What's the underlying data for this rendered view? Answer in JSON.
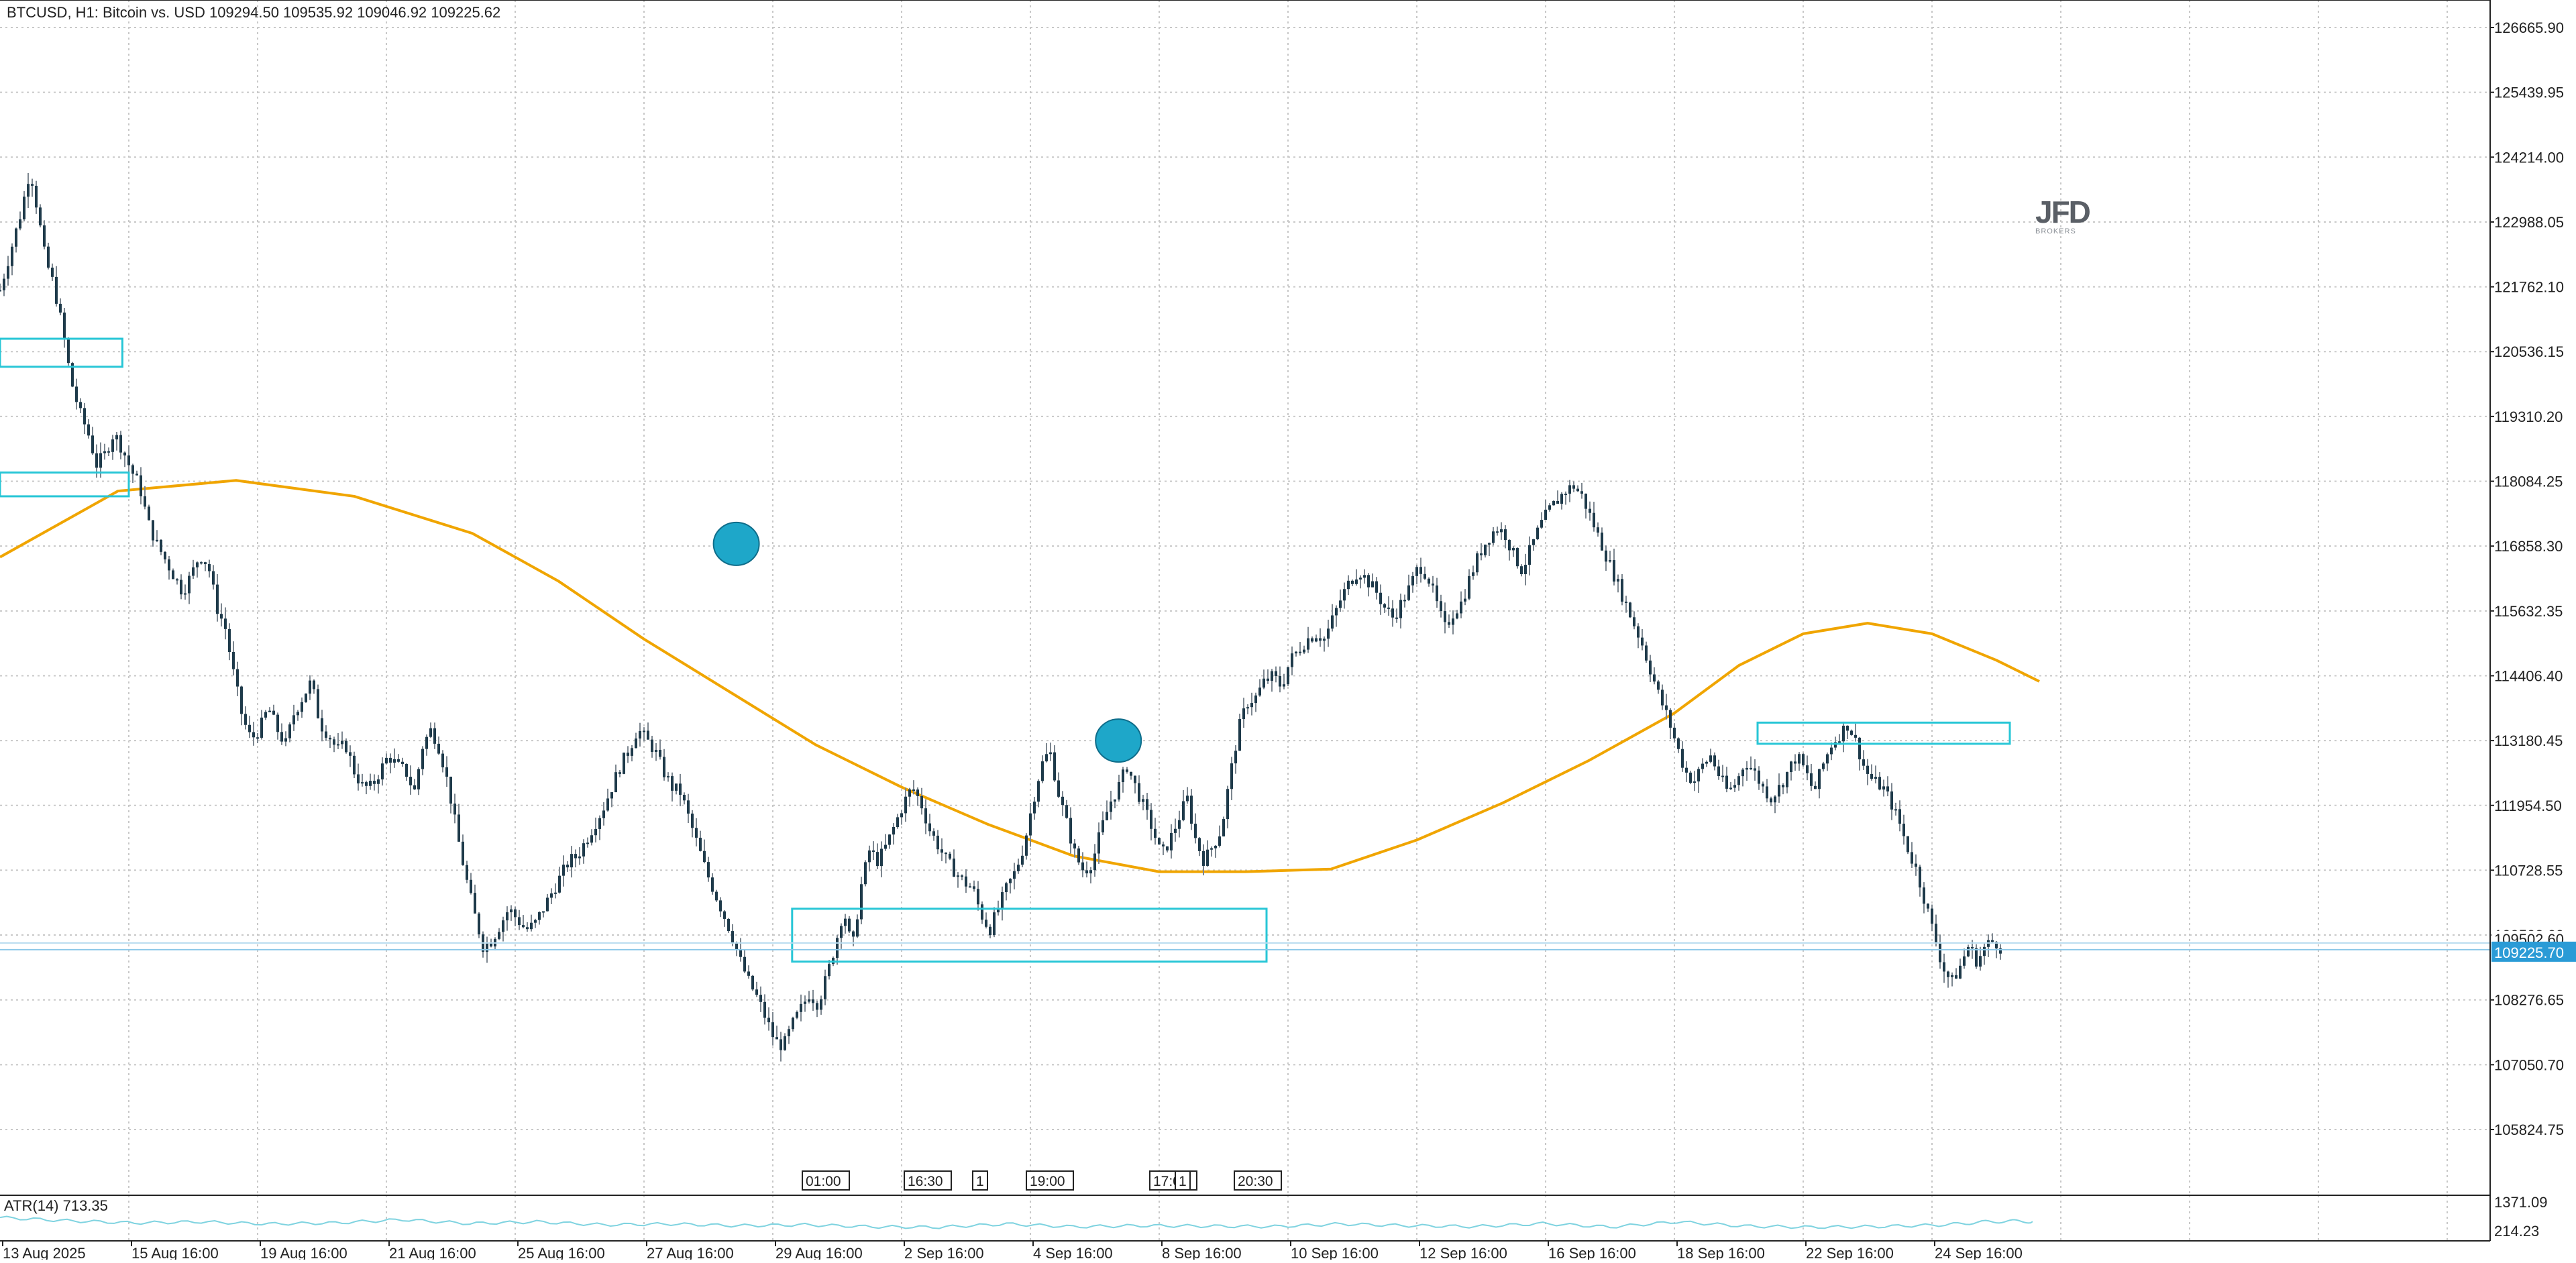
{
  "header": {
    "symbol_info": "BTCUSD, H1:  Bitcoin vs. USD  109294.50 109535.92 109046.92 109225.62"
  },
  "watermark": {
    "logo_text": "JFD",
    "sub_text": "BROKERS"
  },
  "indicator": {
    "label": "ATR(14) 713.35",
    "axis_ticks": [
      "1371.09",
      "214.23"
    ]
  },
  "colors": {
    "up_candle": "#1e3a4a",
    "down_candle": "#1e3a4a",
    "wick": "#7d8790",
    "moving_average": "#f0a500",
    "zone_outline": "#27c6d6",
    "marker_fill": "#1ea7c9",
    "atr_line": "#7fd3e0",
    "grid": "#c8c8c8",
    "price_badge": "#2a9bd6"
  },
  "time_markers": [
    "01:00",
    "16:30",
    "1",
    "19:00",
    "",
    "17:05",
    "1",
    "20:30"
  ],
  "chart_data": {
    "type": "candlestick",
    "symbol": "BTCUSD",
    "timeframe": "H1",
    "y_ticks": [
      126665.9,
      125439.95,
      124214.0,
      122988.05,
      121762.1,
      120536.15,
      119310.2,
      118084.25,
      116858.3,
      115632.35,
      114406.4,
      113180.45,
      111954.5,
      110728.55,
      109502.6,
      108276.65,
      107050.7,
      105824.75
    ],
    "y_tick_labels": [
      "126665.90",
      "125439.95",
      "124214.00",
      "122988.05",
      "121762.10",
      "120536.15",
      "119310.20",
      "118084.25",
      "116858.30",
      "115632.35",
      "114406.40",
      "113180.45",
      "111954.50",
      "110728.55",
      "109502.60",
      "108276.65",
      "107050.70",
      "105824.75"
    ],
    "ylim": [
      104900,
      127050
    ],
    "x_tick_labels": [
      "13 Aug 2025",
      "15 Aug 16:00",
      "19 Aug 16:00",
      "21 Aug 16:00",
      "25 Aug 16:00",
      "27 Aug 16:00",
      "29 Aug 16:00",
      "2 Sep 16:00",
      "4 Sep 16:00",
      "8 Sep 16:00",
      "10 Sep 16:00",
      "12 Sep 16:00",
      "16 Sep 16:00",
      "18 Sep 16:00",
      "22 Sep 16:00",
      "24 Sep 16:00"
    ],
    "close_path": [
      [
        0,
        121700
      ],
      [
        12,
        122600
      ],
      [
        20,
        123200
      ],
      [
        28,
        124000
      ],
      [
        35,
        123200
      ],
      [
        42,
        122300
      ],
      [
        50,
        121800
      ],
      [
        58,
        121000
      ],
      [
        66,
        120000
      ],
      [
        74,
        119400
      ],
      [
        82,
        119000
      ],
      [
        90,
        118400
      ],
      [
        98,
        118600
      ],
      [
        106,
        119000
      ],
      [
        114,
        118700
      ],
      [
        122,
        118300
      ],
      [
        130,
        118000
      ],
      [
        138,
        117300
      ],
      [
        146,
        116900
      ],
      [
        154,
        116600
      ],
      [
        162,
        116300
      ],
      [
        170,
        116000
      ],
      [
        178,
        116300
      ],
      [
        186,
        116700
      ],
      [
        194,
        116500
      ],
      [
        202,
        115700
      ],
      [
        210,
        115300
      ],
      [
        218,
        114400
      ],
      [
        226,
        113600
      ],
      [
        234,
        113200
      ],
      [
        242,
        113400
      ],
      [
        250,
        113800
      ],
      [
        258,
        113400
      ],
      [
        266,
        113100
      ],
      [
        274,
        113700
      ],
      [
        282,
        114000
      ],
      [
        290,
        114300
      ],
      [
        298,
        113500
      ],
      [
        306,
        113300
      ],
      [
        314,
        113000
      ],
      [
        322,
        113100
      ],
      [
        330,
        112600
      ],
      [
        338,
        112300
      ],
      [
        346,
        112300
      ],
      [
        354,
        112600
      ],
      [
        362,
        112900
      ],
      [
        370,
        112700
      ],
      [
        378,
        112600
      ],
      [
        386,
        112200
      ],
      [
        394,
        113100
      ],
      [
        402,
        113400
      ],
      [
        410,
        113000
      ],
      [
        418,
        112300
      ],
      [
        426,
        111400
      ],
      [
        434,
        110600
      ],
      [
        442,
        109900
      ],
      [
        450,
        109300
      ],
      [
        458,
        109400
      ],
      [
        466,
        109700
      ],
      [
        474,
        110000
      ],
      [
        482,
        109800
      ],
      [
        490,
        109600
      ],
      [
        498,
        109700
      ],
      [
        506,
        110000
      ],
      [
        514,
        110300
      ],
      [
        522,
        110600
      ],
      [
        530,
        110900
      ],
      [
        538,
        111000
      ],
      [
        546,
        111300
      ],
      [
        554,
        111600
      ],
      [
        562,
        111900
      ],
      [
        570,
        112300
      ],
      [
        578,
        112700
      ],
      [
        586,
        113000
      ],
      [
        594,
        113400
      ],
      [
        602,
        113200
      ],
      [
        610,
        113000
      ],
      [
        618,
        112600
      ],
      [
        626,
        112300
      ],
      [
        634,
        112200
      ],
      [
        642,
        111700
      ],
      [
        650,
        111200
      ],
      [
        658,
        110700
      ],
      [
        666,
        110300
      ],
      [
        674,
        109900
      ],
      [
        682,
        109500
      ],
      [
        690,
        109000
      ],
      [
        698,
        108600
      ],
      [
        706,
        108300
      ],
      [
        714,
        107900
      ],
      [
        722,
        107500
      ],
      [
        730,
        107400
      ],
      [
        738,
        107800
      ],
      [
        746,
        108100
      ],
      [
        754,
        108400
      ],
      [
        762,
        108200
      ],
      [
        770,
        108700
      ],
      [
        778,
        109300
      ],
      [
        786,
        110000
      ],
      [
        794,
        109200
      ],
      [
        802,
        110400
      ],
      [
        810,
        111100
      ],
      [
        818,
        110900
      ],
      [
        826,
        111200
      ],
      [
        834,
        111600
      ],
      [
        842,
        112000
      ],
      [
        850,
        112300
      ],
      [
        858,
        112000
      ],
      [
        866,
        111500
      ],
      [
        874,
        111200
      ],
      [
        882,
        110900
      ],
      [
        890,
        110700
      ],
      [
        898,
        110500
      ],
      [
        906,
        110400
      ],
      [
        914,
        109900
      ],
      [
        922,
        109600
      ],
      [
        930,
        110000
      ],
      [
        938,
        110400
      ],
      [
        946,
        110700
      ],
      [
        954,
        111200
      ],
      [
        962,
        112000
      ],
      [
        970,
        112700
      ],
      [
        978,
        113000
      ],
      [
        986,
        112200
      ],
      [
        994,
        111600
      ],
      [
        1002,
        111000
      ],
      [
        1010,
        110700
      ],
      [
        1018,
        110900
      ],
      [
        1026,
        111500
      ],
      [
        1034,
        112000
      ],
      [
        1042,
        112300
      ],
      [
        1050,
        112700
      ],
      [
        1058,
        112300
      ],
      [
        1066,
        111900
      ],
      [
        1074,
        111500
      ],
      [
        1082,
        111000
      ],
      [
        1090,
        111300
      ],
      [
        1098,
        111700
      ],
      [
        1106,
        112100
      ],
      [
        1114,
        111300
      ],
      [
        1122,
        110900
      ],
      [
        1130,
        111200
      ],
      [
        1138,
        111500
      ],
      [
        1146,
        112500
      ],
      [
        1154,
        113400
      ],
      [
        1162,
        113900
      ],
      [
        1170,
        114000
      ],
      [
        1178,
        114300
      ],
      [
        1186,
        114400
      ],
      [
        1194,
        114200
      ],
      [
        1202,
        114700
      ],
      [
        1210,
        114900
      ],
      [
        1218,
        115100
      ],
      [
        1226,
        115200
      ],
      [
        1234,
        115100
      ],
      [
        1242,
        115500
      ],
      [
        1250,
        115900
      ],
      [
        1258,
        116200
      ],
      [
        1266,
        116400
      ],
      [
        1274,
        116200
      ],
      [
        1282,
        116000
      ],
      [
        1290,
        115700
      ],
      [
        1298,
        115500
      ],
      [
        1306,
        115800
      ],
      [
        1314,
        116100
      ],
      [
        1322,
        116500
      ],
      [
        1330,
        116300
      ],
      [
        1338,
        115800
      ],
      [
        1346,
        115300
      ],
      [
        1354,
        115600
      ],
      [
        1362,
        115800
      ],
      [
        1370,
        116300
      ],
      [
        1378,
        116700
      ],
      [
        1386,
        117000
      ],
      [
        1394,
        117200
      ],
      [
        1402,
        117100
      ],
      [
        1410,
        116700
      ],
      [
        1418,
        116400
      ],
      [
        1426,
        116800
      ],
      [
        1434,
        117200
      ],
      [
        1442,
        117500
      ],
      [
        1450,
        117700
      ],
      [
        1458,
        117900
      ],
      [
        1466,
        118000
      ],
      [
        1474,
        117800
      ],
      [
        1482,
        117400
      ],
      [
        1490,
        117000
      ],
      [
        1498,
        116600
      ],
      [
        1506,
        116200
      ],
      [
        1514,
        115800
      ],
      [
        1522,
        115400
      ],
      [
        1530,
        115000
      ],
      [
        1538,
        114500
      ],
      [
        1546,
        114000
      ],
      [
        1554,
        113600
      ],
      [
        1562,
        113100
      ],
      [
        1570,
        112600
      ],
      [
        1578,
        112400
      ],
      [
        1586,
        112700
      ],
      [
        1594,
        112900
      ],
      [
        1602,
        112500
      ],
      [
        1610,
        112200
      ],
      [
        1618,
        112400
      ],
      [
        1626,
        112800
      ],
      [
        1634,
        112600
      ],
      [
        1642,
        112300
      ],
      [
        1650,
        112100
      ],
      [
        1658,
        112300
      ],
      [
        1666,
        112600
      ],
      [
        1674,
        112900
      ],
      [
        1682,
        112600
      ],
      [
        1690,
        112200
      ],
      [
        1698,
        112700
      ],
      [
        1706,
        113100
      ],
      [
        1714,
        113300
      ],
      [
        1722,
        113500
      ],
      [
        1730,
        113100
      ],
      [
        1738,
        112600
      ],
      [
        1746,
        112400
      ],
      [
        1754,
        112300
      ],
      [
        1762,
        112000
      ],
      [
        1770,
        111600
      ],
      [
        1778,
        111100
      ],
      [
        1786,
        110700
      ],
      [
        1794,
        110100
      ],
      [
        1802,
        109500
      ],
      [
        1810,
        108900
      ],
      [
        1818,
        108600
      ],
      [
        1826,
        108900
      ],
      [
        1834,
        109300
      ],
      [
        1842,
        109000
      ],
      [
        1850,
        109300
      ],
      [
        1858,
        109400
      ],
      [
        1866,
        109225
      ]
    ],
    "moving_average": [
      [
        0,
        116650
      ],
      [
        110,
        117900
      ],
      [
        220,
        118100
      ],
      [
        330,
        117800
      ],
      [
        440,
        117100
      ],
      [
        520,
        116200
      ],
      [
        600,
        115100
      ],
      [
        680,
        114100
      ],
      [
        760,
        113100
      ],
      [
        840,
        112300
      ],
      [
        920,
        111600
      ],
      [
        1000,
        111000
      ],
      [
        1080,
        110700
      ],
      [
        1160,
        110700
      ],
      [
        1240,
        110750
      ],
      [
        1320,
        111300
      ],
      [
        1400,
        112000
      ],
      [
        1480,
        112800
      ],
      [
        1560,
        113700
      ],
      [
        1620,
        114600
      ],
      [
        1680,
        115200
      ],
      [
        1740,
        115400
      ],
      [
        1800,
        115200
      ],
      [
        1860,
        114700
      ],
      [
        1900,
        114300
      ]
    ],
    "zones": [
      {
        "x_from": 0,
        "x_to": 114,
        "y_from": 120250,
        "y_to": 120780
      },
      {
        "x_from": 0,
        "x_to": 120,
        "y_from": 117800,
        "y_to": 118250
      },
      {
        "x_from": 738,
        "x_to": 1180,
        "y_from": 109000,
        "y_to": 110000
      },
      {
        "x_from": 2620,
        "x_to": 2996,
        "y_from": 113120,
        "y_to": 113520
      }
    ],
    "markers": [
      {
        "x": 686,
        "y": 116900
      },
      {
        "x": 1042,
        "y": 113180
      }
    ],
    "current_price": 109225.7,
    "current_price_label": "109225.70",
    "partial_tick_label": "109502.60",
    "atr_series": [
      [
        0,
        900
      ],
      [
        100,
        750
      ],
      [
        200,
        650
      ],
      [
        300,
        700
      ],
      [
        400,
        600
      ],
      [
        500,
        650
      ],
      [
        600,
        800
      ],
      [
        700,
        620
      ],
      [
        800,
        700
      ],
      [
        900,
        560
      ],
      [
        1000,
        600
      ],
      [
        1100,
        520
      ],
      [
        1200,
        560
      ],
      [
        1300,
        470
      ],
      [
        1400,
        450
      ],
      [
        1500,
        600
      ],
      [
        1600,
        470
      ],
      [
        1700,
        520
      ],
      [
        1800,
        500
      ],
      [
        1900,
        480
      ],
      [
        2000,
        600
      ],
      [
        2100,
        520
      ],
      [
        2200,
        480
      ],
      [
        2300,
        620
      ],
      [
        2400,
        460
      ],
      [
        2500,
        700
      ],
      [
        2600,
        500
      ],
      [
        2700,
        450
      ],
      [
        2800,
        480
      ],
      [
        2900,
        560
      ],
      [
        2960,
        700
      ],
      [
        3000,
        730
      ],
      [
        3030,
        713
      ]
    ],
    "atr_ylim": [
      0,
      1500
    ],
    "atr_value": 713.35,
    "grid": true
  }
}
